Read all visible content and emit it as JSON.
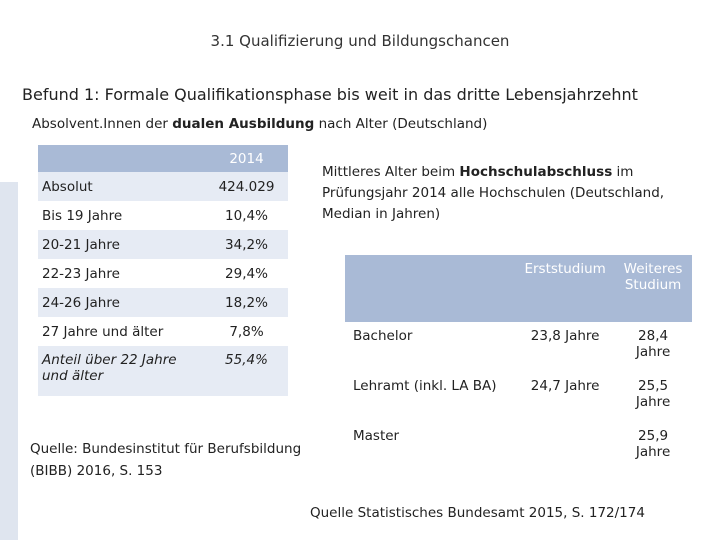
{
  "header": {
    "title": "3.1 Qualifizierung und Bildungschancen"
  },
  "headline": "Befund 1: Formale Qualifikationsphase bis weit in das dritte Lebensjahrzehnt",
  "left_table": {
    "caption": [
      "Absolvent.Innen der ",
      "dualen Ausbildung",
      " nach Alter (Deutschland)"
    ],
    "column_header": "2014",
    "rows": [
      [
        "Absolut",
        "424.029"
      ],
      [
        "Bis 19 Jahre",
        "10,4%"
      ],
      [
        "20-21 Jahre",
        "34,2%"
      ],
      [
        "22-23 Jahre",
        "29,4%"
      ],
      [
        "24-26 Jahre",
        "18,2%"
      ],
      [
        "27 Jahre und älter",
        "7,8%"
      ],
      [
        "Anteil über 22 Jahre und älter",
        "55,4%"
      ]
    ],
    "source": "Quelle: Bundesinstitut für Berufsbildung (BIBB) 2016, S. 153"
  },
  "right_table": {
    "caption": [
      "Mittleres Alter beim ",
      "Hochschulabschluss",
      " im Prüfungsjahr 2014 alle Hochschulen (Deutschland, Median in Jahren)"
    ],
    "columns": [
      "Erststudium",
      "Weiteres Studium"
    ],
    "rows": [
      {
        "label": "Bachelor",
        "erst": "23,8 Jahre",
        "weiter": "28,4 Jahre"
      },
      {
        "label": "Lehramt (inkl. LA BA)",
        "erst": "24,7 Jahre",
        "weiter": "25,5 Jahre"
      },
      {
        "label": "Master",
        "weiter": "25,9 Jahre"
      }
    ],
    "source": "Quelle Statistisches Bundesamt 2015, S. 172/174"
  }
}
